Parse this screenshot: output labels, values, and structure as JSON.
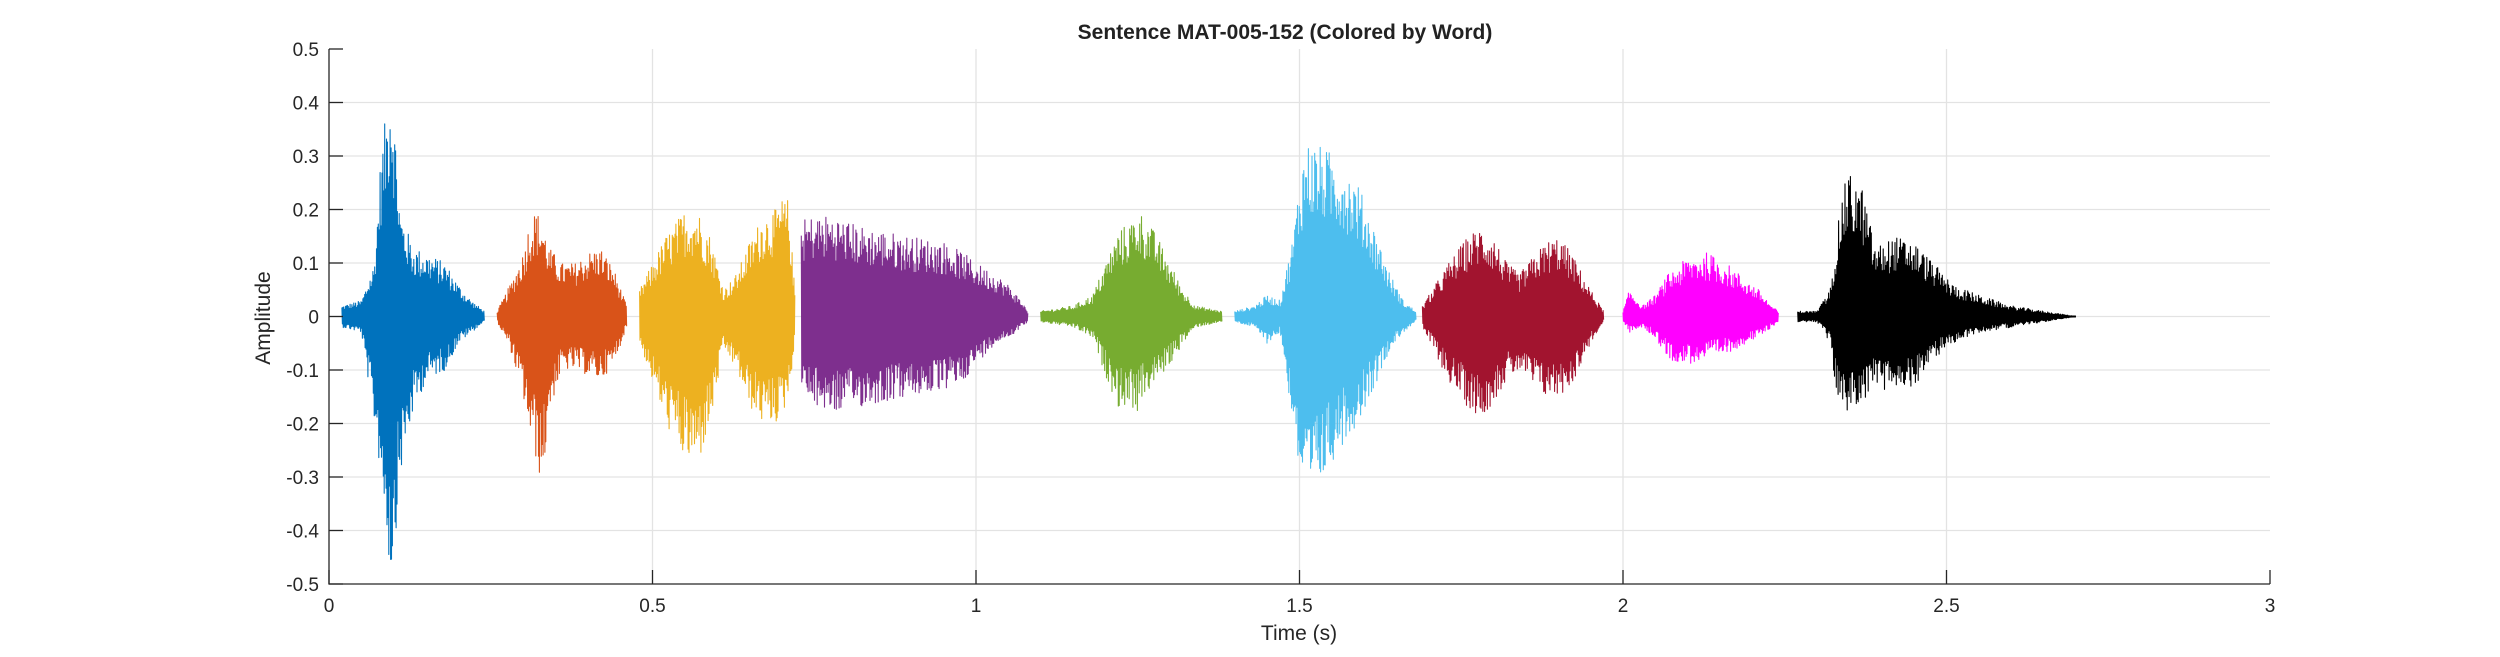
{
  "chart_data": {
    "type": "line",
    "title": "Sentence MAT-005-152 (Colored by Word)",
    "xlabel": "Time (s)",
    "ylabel": "Amplitude",
    "xlim": [
      0,
      3
    ],
    "ylim": [
      -0.5,
      0.5
    ],
    "xticks": [
      0,
      0.5,
      1,
      1.5,
      2,
      2.5,
      3
    ],
    "xtick_labels": [
      "0",
      "0.5",
      "1",
      "1.5",
      "2",
      "2.5",
      "3"
    ],
    "yticks": [
      0.5,
      0.4,
      0.3,
      0.2,
      0.1,
      0,
      -0.1,
      -0.2,
      -0.3,
      -0.4,
      -0.5
    ],
    "ytick_labels": [
      "0.5",
      "0.4",
      "0.3",
      "0.2",
      "0.1",
      "0",
      "-0.1",
      "-0.2",
      "-0.3",
      "-0.4",
      "-0.5"
    ],
    "grid": true,
    "series": [
      {
        "color": "#0072BD",
        "x_start": 0.02,
        "x_end": 0.24,
        "envelope": [
          [
            0.02,
            0.02,
            -0.02
          ],
          [
            0.05,
            0.03,
            -0.03
          ],
          [
            0.07,
            0.1,
            -0.2
          ],
          [
            0.08,
            0.3,
            -0.3
          ],
          [
            0.09,
            0.4,
            -0.42
          ],
          [
            0.095,
            0.47,
            -0.5
          ],
          [
            0.1,
            0.4,
            -0.45
          ],
          [
            0.11,
            0.2,
            -0.3
          ],
          [
            0.13,
            0.13,
            -0.18
          ],
          [
            0.15,
            0.12,
            -0.12
          ],
          [
            0.18,
            0.1,
            -0.1
          ],
          [
            0.2,
            0.06,
            -0.05
          ],
          [
            0.22,
            0.03,
            -0.03
          ],
          [
            0.24,
            0.01,
            -0.01
          ]
        ]
      },
      {
        "color": "#D95319",
        "x_start": 0.26,
        "x_end": 0.46,
        "envelope": [
          [
            0.26,
            0.01,
            -0.01
          ],
          [
            0.28,
            0.06,
            -0.06
          ],
          [
            0.3,
            0.12,
            -0.15
          ],
          [
            0.31,
            0.18,
            -0.22
          ],
          [
            0.32,
            0.2,
            -0.27
          ],
          [
            0.33,
            0.18,
            -0.32
          ],
          [
            0.34,
            0.13,
            -0.18
          ],
          [
            0.36,
            0.1,
            -0.1
          ],
          [
            0.38,
            0.1,
            -0.1
          ],
          [
            0.4,
            0.12,
            -0.11
          ],
          [
            0.42,
            0.13,
            -0.12
          ],
          [
            0.44,
            0.09,
            -0.09
          ],
          [
            0.46,
            0.02,
            -0.02
          ]
        ]
      },
      {
        "color": "#EDB120",
        "x_start": 0.48,
        "x_end": 0.72,
        "envelope": [
          [
            0.48,
            0.05,
            -0.05
          ],
          [
            0.5,
            0.1,
            -0.12
          ],
          [
            0.52,
            0.15,
            -0.2
          ],
          [
            0.55,
            0.2,
            -0.27
          ],
          [
            0.57,
            0.2,
            -0.28
          ],
          [
            0.59,
            0.15,
            -0.2
          ],
          [
            0.61,
            0.05,
            -0.06
          ],
          [
            0.63,
            0.08,
            -0.1
          ],
          [
            0.65,
            0.14,
            -0.17
          ],
          [
            0.67,
            0.19,
            -0.2
          ],
          [
            0.69,
            0.2,
            -0.2
          ],
          [
            0.7,
            0.22,
            -0.19
          ],
          [
            0.71,
            0.22,
            -0.15
          ],
          [
            0.72,
            0.05,
            -0.05
          ]
        ]
      },
      {
        "color": "#7E2F8E",
        "x_start": 0.73,
        "x_end": 1.08,
        "envelope": [
          [
            0.73,
            0.18,
            -0.15
          ],
          [
            0.75,
            0.19,
            -0.17
          ],
          [
            0.78,
            0.19,
            -0.18
          ],
          [
            0.82,
            0.17,
            -0.17
          ],
          [
            0.86,
            0.16,
            -0.16
          ],
          [
            0.9,
            0.15,
            -0.15
          ],
          [
            0.95,
            0.14,
            -0.14
          ],
          [
            0.98,
            0.12,
            -0.12
          ],
          [
            1.0,
            0.1,
            -0.09
          ],
          [
            1.03,
            0.08,
            -0.05
          ],
          [
            1.05,
            0.06,
            -0.04
          ],
          [
            1.07,
            0.03,
            -0.02
          ],
          [
            1.08,
            0.01,
            -0.01
          ]
        ]
      },
      {
        "color": "#77AC30",
        "x_start": 1.1,
        "x_end": 1.38,
        "envelope": [
          [
            1.1,
            0.01,
            -0.01
          ],
          [
            1.15,
            0.02,
            -0.02
          ],
          [
            1.18,
            0.04,
            -0.04
          ],
          [
            1.2,
            0.1,
            -0.11
          ],
          [
            1.22,
            0.16,
            -0.17
          ],
          [
            1.24,
            0.18,
            -0.17
          ],
          [
            1.25,
            0.2,
            -0.18
          ],
          [
            1.26,
            0.19,
            -0.15
          ],
          [
            1.28,
            0.15,
            -0.12
          ],
          [
            1.3,
            0.1,
            -0.09
          ],
          [
            1.32,
            0.05,
            -0.05
          ],
          [
            1.34,
            0.02,
            -0.02
          ],
          [
            1.38,
            0.01,
            -0.01
          ]
        ]
      },
      {
        "color": "#4DBEEE",
        "x_start": 1.4,
        "x_end": 1.68,
        "envelope": [
          [
            1.4,
            0.01,
            -0.01
          ],
          [
            1.43,
            0.02,
            -0.02
          ],
          [
            1.45,
            0.04,
            -0.05
          ],
          [
            1.47,
            0.03,
            -0.03
          ],
          [
            1.49,
            0.15,
            -0.2
          ],
          [
            1.5,
            0.26,
            -0.3
          ],
          [
            1.51,
            0.33,
            -0.36
          ],
          [
            1.53,
            0.32,
            -0.32
          ],
          [
            1.56,
            0.3,
            -0.25
          ],
          [
            1.59,
            0.25,
            -0.2
          ],
          [
            1.62,
            0.15,
            -0.12
          ],
          [
            1.64,
            0.08,
            -0.06
          ],
          [
            1.66,
            0.03,
            -0.03
          ],
          [
            1.68,
            0.01,
            -0.01
          ]
        ]
      },
      {
        "color": "#A2142F",
        "x_start": 1.69,
        "x_end": 1.97,
        "envelope": [
          [
            1.69,
            0.02,
            -0.02
          ],
          [
            1.71,
            0.06,
            -0.07
          ],
          [
            1.73,
            0.1,
            -0.12
          ],
          [
            1.76,
            0.15,
            -0.17
          ],
          [
            1.78,
            0.17,
            -0.19
          ],
          [
            1.8,
            0.15,
            -0.16
          ],
          [
            1.82,
            0.1,
            -0.12
          ],
          [
            1.84,
            0.08,
            -0.1
          ],
          [
            1.86,
            0.11,
            -0.13
          ],
          [
            1.88,
            0.14,
            -0.15
          ],
          [
            1.9,
            0.15,
            -0.15
          ],
          [
            1.92,
            0.12,
            -0.13
          ],
          [
            1.95,
            0.05,
            -0.05
          ],
          [
            1.97,
            0.01,
            -0.01
          ]
        ]
      },
      {
        "color": "#FF00FF",
        "x_start": 2.0,
        "x_end": 2.24,
        "envelope": [
          [
            2.0,
            0.01,
            -0.01
          ],
          [
            2.01,
            0.05,
            -0.03
          ],
          [
            2.03,
            0.02,
            -0.02
          ],
          [
            2.05,
            0.04,
            -0.04
          ],
          [
            2.07,
            0.08,
            -0.08
          ],
          [
            2.1,
            0.11,
            -0.09
          ],
          [
            2.13,
            0.12,
            -0.08
          ],
          [
            2.16,
            0.1,
            -0.07
          ],
          [
            2.19,
            0.07,
            -0.05
          ],
          [
            2.21,
            0.05,
            -0.04
          ],
          [
            2.23,
            0.02,
            -0.02
          ],
          [
            2.24,
            0.01,
            -0.01
          ]
        ]
      },
      {
        "color": "#000000",
        "x_start": 2.27,
        "x_end": 2.7,
        "envelope": [
          [
            2.27,
            0.01,
            -0.01
          ],
          [
            2.3,
            0.01,
            -0.01
          ],
          [
            2.32,
            0.05,
            -0.05
          ],
          [
            2.33,
            0.15,
            -0.15
          ],
          [
            2.34,
            0.24,
            -0.17
          ],
          [
            2.35,
            0.27,
            -0.18
          ],
          [
            2.37,
            0.24,
            -0.16
          ],
          [
            2.39,
            0.13,
            -0.13
          ],
          [
            2.42,
            0.15,
            -0.15
          ],
          [
            2.45,
            0.14,
            -0.13
          ],
          [
            2.48,
            0.1,
            -0.08
          ],
          [
            2.51,
            0.06,
            -0.05
          ],
          [
            2.55,
            0.04,
            -0.03
          ],
          [
            2.6,
            0.02,
            -0.02
          ],
          [
            2.65,
            0.01,
            -0.01
          ],
          [
            2.7,
            0.0,
            0.0
          ]
        ]
      }
    ]
  }
}
